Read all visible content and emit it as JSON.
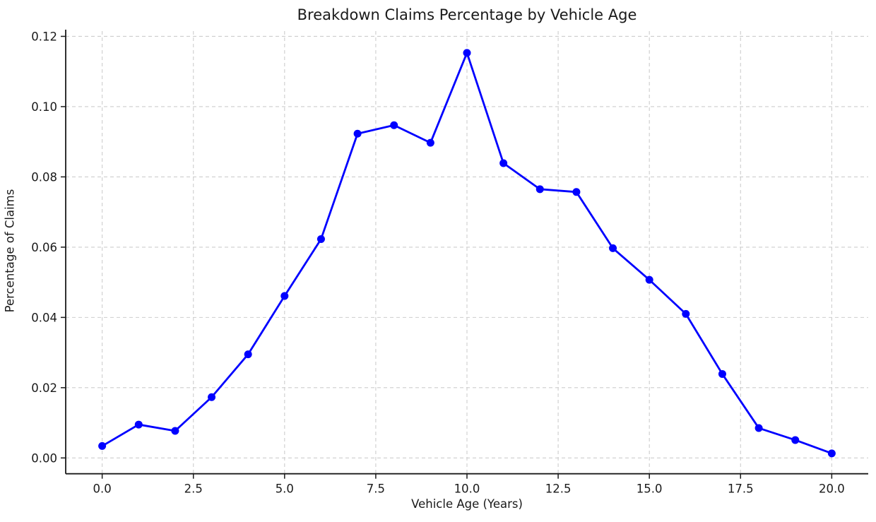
{
  "figure": {
    "title": "Breakdown Claims Percentage by Vehicle Age",
    "xlabel": "Vehicle Age (Years)",
    "ylabel": "Percentage of Claims"
  },
  "chart_data": {
    "type": "line",
    "title": "Breakdown Claims Percentage by Vehicle Age",
    "xlabel": "Vehicle Age (Years)",
    "ylabel": "Percentage of Claims",
    "x": [
      0,
      1,
      2,
      3,
      4,
      5,
      6,
      7,
      8,
      9,
      10,
      11,
      12,
      13,
      14,
      15,
      16,
      17,
      18,
      19,
      20
    ],
    "y": [
      0.0034,
      0.0095,
      0.0077,
      0.0173,
      0.0295,
      0.0461,
      0.0623,
      0.0923,
      0.0947,
      0.0897,
      0.1153,
      0.0839,
      0.0765,
      0.0757,
      0.0597,
      0.0507,
      0.041,
      0.0239,
      0.0085,
      0.0051,
      0.0013
    ],
    "xlim": [
      -1,
      21
    ],
    "ylim": [
      -0.0045,
      0.1215
    ],
    "xticks": {
      "values": [
        0,
        2.5,
        5,
        7.5,
        10,
        12.5,
        15,
        17.5,
        20
      ],
      "labels": [
        "0.0",
        "2.5",
        "5.0",
        "7.5",
        "10.0",
        "12.5",
        "15.0",
        "17.5",
        "20.0"
      ]
    },
    "yticks": {
      "values": [
        0,
        0.02,
        0.04,
        0.06,
        0.08,
        0.1,
        0.12
      ],
      "labels": [
        "0.00",
        "0.02",
        "0.04",
        "0.06",
        "0.08",
        "0.10",
        "0.12"
      ]
    },
    "grid": {
      "visible": true,
      "style": "dashed",
      "color": "#cdcdcd"
    },
    "legend": {
      "visible": false
    },
    "style": {
      "line_color": "#0000ff",
      "marker": "circle",
      "marker_color": "#0000ff",
      "spine_color": "#1a1a1a",
      "background": "#ffffff"
    }
  }
}
